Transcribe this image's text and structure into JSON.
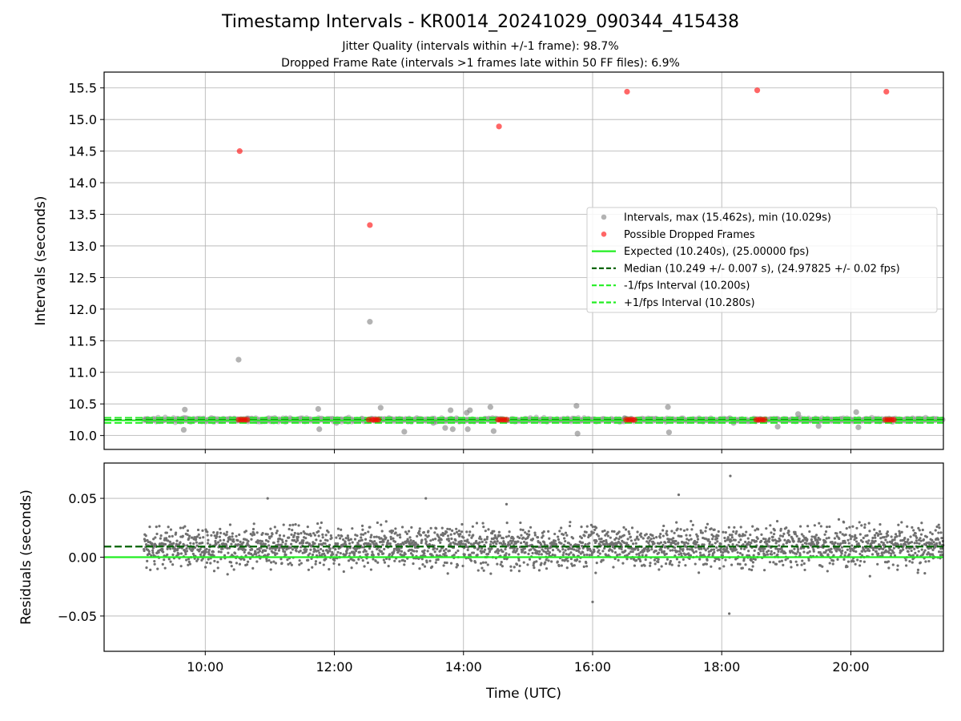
{
  "chart_data": [
    {
      "type": "scatter",
      "title": "Timestamp Intervals - KR0014_20241029_090344_415438",
      "subtitle_lines": [
        "Jitter Quality (intervals within +/-1 frame): 98.7%",
        "Dropped Frame Rate (intervals >1 frames late within 50 FF files): 6.9%"
      ],
      "ylabel": "Intervals (seconds)",
      "xlim": [
        "08:26",
        "21:26"
      ],
      "ylim": [
        9.78,
        15.75
      ],
      "yticks": [
        10.0,
        10.5,
        11.0,
        11.5,
        12.0,
        12.5,
        13.0,
        13.5,
        14.0,
        14.5,
        15.0,
        15.5
      ],
      "ytick_labels": [
        "10.0",
        "10.5",
        "11.0",
        "11.5",
        "12.0",
        "12.5",
        "13.0",
        "13.5",
        "14.0",
        "14.5",
        "15.0",
        "15.5"
      ],
      "grid": true,
      "legend_position": "center-right",
      "series": [
        {
          "name": "Intervals, max (15.462s), min (10.029s)",
          "kind": "points",
          "color": "#808080",
          "x": [
            "09:05",
            "09:40",
            "09:41",
            "10:31",
            "10:40",
            "11:15",
            "11:45",
            "11:46",
            "12:02",
            "12:33",
            "12:41",
            "12:43",
            "13:05",
            "13:32",
            "13:43",
            "13:48",
            "13:50",
            "14:03",
            "14:04",
            "14:06",
            "14:25",
            "14:28",
            "15:45",
            "15:46",
            "16:30",
            "17:10",
            "17:11",
            "17:50",
            "18:11",
            "18:52",
            "19:11",
            "19:30",
            "20:05",
            "20:07"
          ],
          "y": [
            10.25,
            10.09,
            10.41,
            11.2,
            10.27,
            10.26,
            10.42,
            10.1,
            10.2,
            11.8,
            10.25,
            10.44,
            10.06,
            10.2,
            10.12,
            10.4,
            10.1,
            10.36,
            10.1,
            10.4,
            10.45,
            10.07,
            10.47,
            10.03,
            10.27,
            10.45,
            10.05,
            10.25,
            10.2,
            10.14,
            10.34,
            10.15,
            10.37,
            10.13
          ]
        },
        {
          "name": "Possible Dropped Frames",
          "kind": "points",
          "color": "#ff0000",
          "x": [
            "10:31",
            "10:33",
            "10:35",
            "10:37",
            "10:39",
            "12:32",
            "12:35",
            "12:37",
            "12:39",
            "12:41",
            "14:32",
            "14:34",
            "14:36",
            "14:38",
            "14:40",
            "16:31",
            "16:33",
            "16:35",
            "16:37",
            "16:39",
            "18:32",
            "18:34",
            "18:36",
            "18:38",
            "18:40",
            "20:32",
            "20:34",
            "20:36",
            "20:38",
            "20:40",
            "10:32",
            "12:33",
            "14:33",
            "16:32",
            "18:33",
            "20:33"
          ],
          "y": [
            10.25,
            10.25,
            10.25,
            10.25,
            10.25,
            10.25,
            10.25,
            10.25,
            10.25,
            10.25,
            10.25,
            10.25,
            10.25,
            10.25,
            10.25,
            10.25,
            10.25,
            10.25,
            10.25,
            10.25,
            10.25,
            10.25,
            10.25,
            10.25,
            10.25,
            10.25,
            10.25,
            10.25,
            10.25,
            10.25,
            14.5,
            13.33,
            14.89,
            15.44,
            15.462,
            15.44
          ]
        },
        {
          "name": "Expected (10.240s), (25.00000 fps)",
          "kind": "hline",
          "value": 10.24,
          "color": "#22ee22",
          "dash": "solid"
        },
        {
          "name": "Median (10.249 +/- 0.007 s), (24.97825 +/- 0.02 fps)",
          "kind": "hline",
          "value": 10.249,
          "color": "#006400",
          "dash": "dashed"
        },
        {
          "name": "-1/fps Interval (10.200s)",
          "kind": "hline",
          "value": 10.2,
          "color": "#22ee22",
          "dash": "dashed"
        },
        {
          "name": "+1/fps Interval (10.280s)",
          "kind": "hline",
          "value": 10.28,
          "color": "#22ee22",
          "dash": "dashed"
        }
      ]
    },
    {
      "type": "scatter",
      "xlabel": "Time (UTC)",
      "ylabel": "Residuals (seconds)",
      "xlim": [
        "08:26",
        "21:26"
      ],
      "ylim": [
        -0.08,
        0.08
      ],
      "xticks": [
        "10:00",
        "12:00",
        "14:00",
        "16:00",
        "18:00",
        "20:00"
      ],
      "xtick_labels": [
        "10:00",
        "12:00",
        "14:00",
        "16:00",
        "18:00",
        "20:00"
      ],
      "yticks": [
        0.05,
        0.0,
        -0.05
      ],
      "ytick_labels": [
        "0.05",
        "0.00",
        "−0.05"
      ],
      "grid": true,
      "series": [
        {
          "kind": "hline",
          "value": 0.0,
          "color": "#22ee22",
          "dash": "solid"
        },
        {
          "kind": "hline",
          "value": 0.009,
          "color": "#006400",
          "dash": "dashed"
        },
        {
          "kind": "points",
          "color": "#707070",
          "x_range": [
            "09:03",
            "21:26"
          ],
          "typical_range": [
            -0.02,
            0.03
          ],
          "extreme_points": {
            "x": [
              "18:08",
              "18:07",
              "17:20",
              "13:25",
              "10:58",
              "16:00",
              "14:40"
            ],
            "y": [
              0.069,
              -0.048,
              0.053,
              0.05,
              0.05,
              -0.038,
              0.045
            ]
          }
        }
      ]
    }
  ]
}
